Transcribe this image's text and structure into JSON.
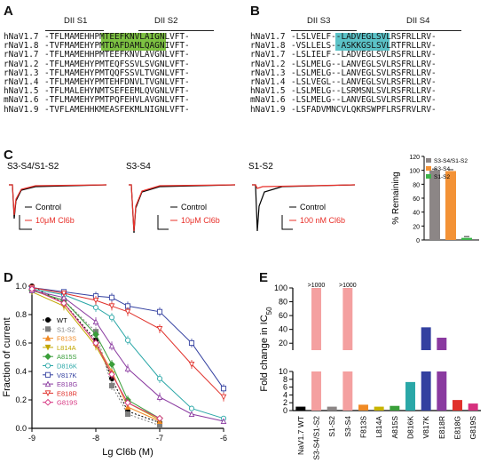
{
  "panel_a": {
    "label": "A",
    "header_left": "DII S1",
    "header_right": "DII S2",
    "highlight_color": "#7dc142",
    "rows": [
      {
        "name": "hNaV1.7",
        "seq": "-TFLMAMEHHPMTEEFKNVLAIGNLVFT-"
      },
      {
        "name": "rNaV1.8",
        "seq": "-TVFMAMEHYPMTDAFDAMLQAGNIVFT-"
      },
      {
        "name": "rNaV1.7",
        "seq": "-TFLMAMEHHPMTEEFKNVLAVGNLVFT-"
      },
      {
        "name": "rNaV1.2",
        "seq": "-TFLMAMEHYPMTEQFSSVLSVGNLVFT-"
      },
      {
        "name": "rNaV1.3",
        "seq": "-TFLMAMEHYPMTQQFSSVLTVGNLVFT-"
      },
      {
        "name": "rNaV1.4",
        "seq": "-TFLMAMEHYPMTEHFDNVLTVGNLVFT-"
      },
      {
        "name": "hNaV1.5",
        "seq": "-TFLMALEHYNMTSEFEEMLQVGNLVFT-"
      },
      {
        "name": "mNaV1.6",
        "seq": "-TFLMAMEHYPMTPQFEHVLAVGNLVFT-"
      },
      {
        "name": "hNaV1.9",
        "seq": "-TVFLAMEHHKMEASFEKMLNIGNLVFT-"
      }
    ]
  },
  "panel_b": {
    "label": "B",
    "header_left": "DII S3",
    "header_right": "DII S4",
    "highlight_color": "#5bc2c7",
    "rows": [
      {
        "name": "hNaV1.7",
        "seq": "-LSLVELF--LADVEGLSVLRSFRLLRV-"
      },
      {
        "name": "rNaV1.8",
        "seq": "-VSLLELS--ASKKGSLSVLRTFRLLRV-"
      },
      {
        "name": "rNaV1.7",
        "seq": "-LSLIELF--LADVEGLSVLRSFRLLRV-"
      },
      {
        "name": "rNaV1.2",
        "seq": "-LSLMELG--LANVEGLSVLRSFRLLRV-"
      },
      {
        "name": "rNaV1.3",
        "seq": "-LSLMELG--LANVEGLSVLRSFRLLRV-"
      },
      {
        "name": "rNaV1.4",
        "seq": "-LSLVEGL--LANVEGLSVLRSFRLLRV-"
      },
      {
        "name": "hNaV1.5",
        "seq": "-LSLMELG--LSRMSNLSVLRSFRLLRV-"
      },
      {
        "name": "mNaV1.6",
        "seq": "-LSLMELG--LANVEGLSVLRSFRLLRV-"
      },
      {
        "name": "hNaV1.9",
        "seq": "-LSFADVMNCVLQKRSWPFLRSFRVLRV-"
      }
    ]
  },
  "panel_c": {
    "label": "C",
    "traces": [
      {
        "title": "S3-S4/S1-S2",
        "legend": [
          "Control",
          "10μM Cl6b"
        ]
      },
      {
        "title": "S3-S4",
        "legend": [
          "Control",
          "10μM Cl6b"
        ]
      },
      {
        "title": "S1-S2",
        "legend": [
          "Control",
          "100 nM Cl6b"
        ]
      }
    ],
    "control_color": "#000000",
    "drug_color": "#e8302a"
  },
  "panel_d": {
    "label": "D"
  },
  "panel_e": {
    "label": "E"
  },
  "chart_data": [
    {
      "type": "bar",
      "panel": "C",
      "ylabel": "% Remaining",
      "ylim": [
        0,
        120
      ],
      "yticks": [
        0,
        20,
        40,
        60,
        80,
        100,
        120
      ],
      "legend_position": "top",
      "series": [
        {
          "name": "S3-S4/S1-S2",
          "values": [
            100
          ],
          "color": "#8c8686"
        },
        {
          "name": "S3-S4",
          "values": [
            99
          ],
          "color": "#f39236"
        },
        {
          "name": "S1-S2",
          "values": [
            3
          ],
          "color": "#3cb44a"
        }
      ]
    },
    {
      "type": "line",
      "panel": "D",
      "xlabel": "Lg Cl6b (M)",
      "ylabel": "Fraction of current",
      "xlim": [
        -9,
        -6
      ],
      "ylim": [
        0,
        1.0
      ],
      "xticks": [
        -9,
        -8,
        -7,
        -6
      ],
      "yticks": [
        0.0,
        0.2,
        0.4,
        0.6,
        0.8,
        1.0
      ],
      "legend_position": "center-left",
      "x": [
        -9,
        -8.5,
        -8,
        -7.75,
        -7.5,
        -7,
        -6.5,
        -6
      ],
      "series": [
        {
          "name": "WT",
          "color": "#000000",
          "marker": "filled-circle",
          "values": [
            1.0,
            0.88,
            0.62,
            0.35,
            0.12,
            0.04,
            null,
            null
          ]
        },
        {
          "name": "S1-S2",
          "color": "#808080",
          "marker": "filled-square",
          "values": [
            0.97,
            0.9,
            0.68,
            0.3,
            0.1,
            0.02,
            null,
            null
          ]
        },
        {
          "name": "F813S",
          "color": "#f08a24",
          "marker": "filled-triangle",
          "values": [
            0.98,
            0.88,
            0.6,
            0.4,
            0.15,
            0.05,
            null,
            null
          ]
        },
        {
          "name": "L814A",
          "color": "#c2a600",
          "marker": "filled-triangle-down",
          "values": [
            0.96,
            0.86,
            0.58,
            0.38,
            0.18,
            0.06,
            null,
            null
          ]
        },
        {
          "name": "A815S",
          "color": "#3a9e3a",
          "marker": "filled-diamond",
          "values": [
            0.97,
            0.9,
            0.66,
            0.45,
            0.2,
            0.07,
            null,
            null
          ]
        },
        {
          "name": "D816K",
          "color": "#2aa7a7",
          "marker": "open-circle",
          "values": [
            0.98,
            0.94,
            0.85,
            0.78,
            0.62,
            0.35,
            0.14,
            0.07
          ]
        },
        {
          "name": "V817K",
          "color": "#3340a0",
          "marker": "open-square",
          "values": [
            0.99,
            0.96,
            0.93,
            0.92,
            0.86,
            0.82,
            0.6,
            0.28
          ]
        },
        {
          "name": "E818G",
          "color": "#8a3aa0",
          "marker": "open-triangle",
          "values": [
            0.97,
            0.92,
            0.75,
            0.58,
            0.42,
            0.22,
            0.1,
            0.05
          ]
        },
        {
          "name": "E818R",
          "color": "#e0302a",
          "marker": "open-triangle-down",
          "values": [
            0.99,
            0.95,
            0.9,
            0.86,
            0.82,
            0.7,
            0.45,
            0.22
          ]
        },
        {
          "name": "G819S",
          "color": "#d6307e",
          "marker": "open-diamond",
          "values": [
            0.98,
            0.88,
            0.6,
            0.38,
            0.18,
            0.07,
            null,
            null
          ]
        }
      ]
    },
    {
      "type": "bar",
      "panel": "E",
      "ylabel": "Fold change in IC50",
      "broken_axis": true,
      "lower_ylim": [
        0,
        10
      ],
      "upper_ylim": [
        10,
        100
      ],
      "lower_yticks": [
        0,
        2,
        4,
        6,
        8,
        10
      ],
      "upper_yticks": [
        20,
        40,
        60,
        80,
        100
      ],
      "categories": [
        "NaV1.7 WT",
        "S3-S4/S1-S2",
        "S1-S2",
        "S3-S4",
        "F813S",
        "L814A",
        "A815S",
        "D816K",
        "V817K",
        "E818R",
        "E818G",
        "G819S"
      ],
      "values": [
        1,
        1000,
        1,
        1000,
        1.5,
        1,
        1.2,
        7.3,
        43,
        28,
        2.7,
        1.8
      ],
      "annotations": [
        {
          "category": "S3-S4/S1-S2",
          "text": ">1000"
        },
        {
          "category": "S3-S4",
          "text": ">1000"
        }
      ],
      "colors": [
        "#000000",
        "#f4a0a0",
        "#8c8686",
        "#f4a0a0",
        "#f08a24",
        "#c8b400",
        "#3aa03a",
        "#2aa7a7",
        "#3340a0",
        "#8a3aa0",
        "#e0302a",
        "#d6307e"
      ]
    }
  ]
}
